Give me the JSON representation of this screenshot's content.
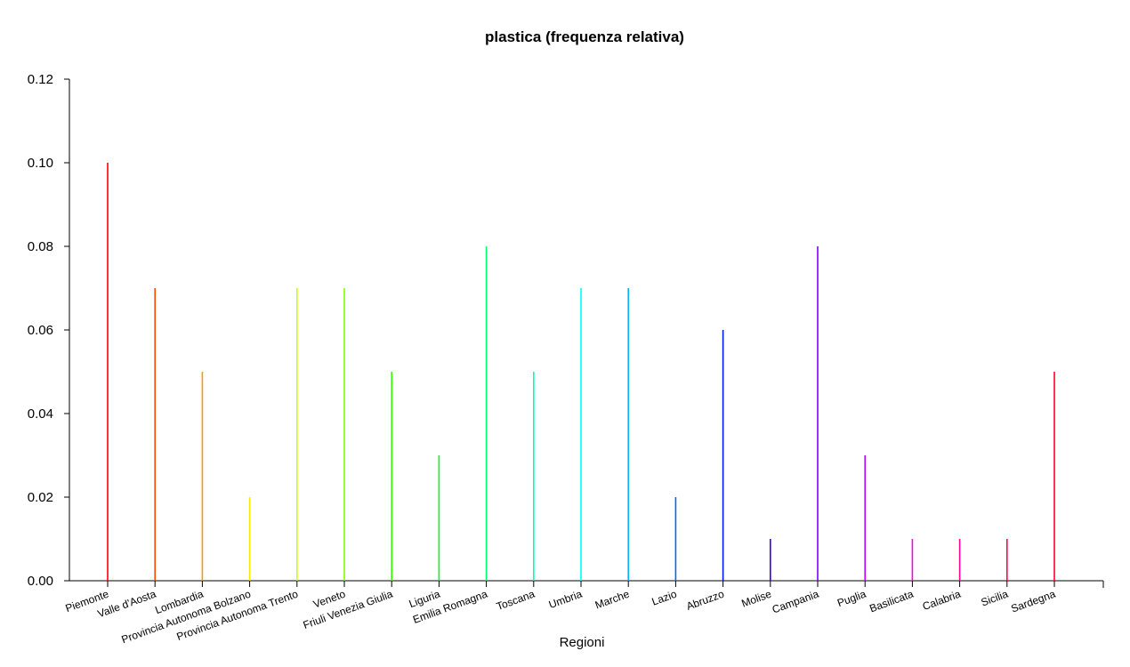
{
  "chart_data": {
    "type": "bar",
    "title": "plastica  (frequenza relativa)",
    "xlabel": "Regioni",
    "ylabel": "",
    "ylim": [
      0,
      0.12
    ],
    "yticks": [
      "0.00",
      "0.02",
      "0.04",
      "0.06",
      "0.08",
      "0.10",
      "0.12"
    ],
    "grid": false,
    "categories": [
      "Piemonte",
      "Valle d'Aosta",
      "Lombardia",
      "Provincia Autonoma Bolzano",
      "Provincia Autonoma Trento",
      "Veneto",
      "Friuli Venezia Giulia",
      "Liguria",
      "Emilia Romagna",
      "Toscana",
      "Umbria",
      "Marche",
      "Lazio",
      "Abruzzo",
      "Molise",
      "Campania",
      "Puglia",
      "Basilicata",
      "Calabria",
      "Sicilia",
      "Sardegna"
    ],
    "values": [
      0.1,
      0.07,
      0.05,
      0.02,
      0.07,
      0.07,
      0.05,
      0.03,
      0.08,
      0.05,
      0.07,
      0.07,
      0.02,
      0.06,
      0.01,
      0.08,
      0.03,
      0.01,
      0.01,
      0.01,
      0.05
    ],
    "colors": [
      "#ff0000",
      "#ff4d00",
      "#ff9900",
      "#ffe500",
      "#ccff00",
      "#80ff00",
      "#33ff00",
      "#00ff19",
      "#00ff66",
      "#00ffb2",
      "#00ffff",
      "#00b3ff",
      "#0066ff",
      "#001aff",
      "#3300ff",
      "#8000ff",
      "#cc00ff",
      "#ff00e6",
      "#ff0099",
      "#ff004d",
      "#ff0033"
    ]
  }
}
